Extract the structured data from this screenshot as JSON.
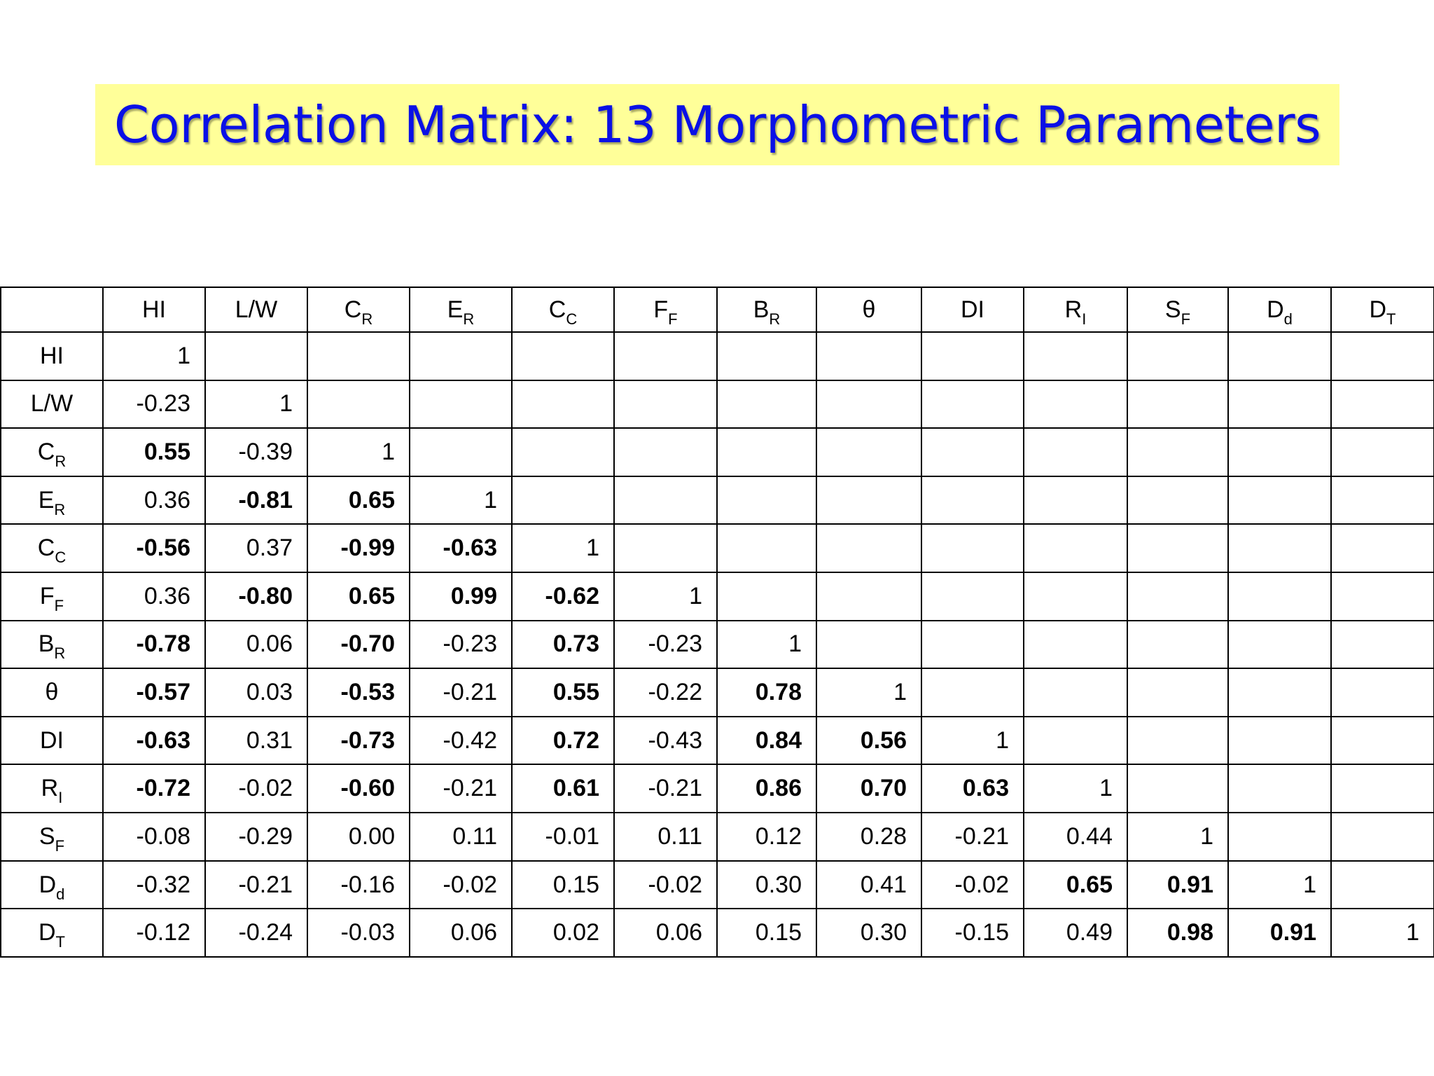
{
  "title": "Correlation Matrix: 13 Morphometric Parameters",
  "parameters": [
    {
      "base": "HI",
      "sub": ""
    },
    {
      "base": "L/W",
      "sub": ""
    },
    {
      "base": "C",
      "sub": "R"
    },
    {
      "base": "E",
      "sub": "R"
    },
    {
      "base": "C",
      "sub": "C"
    },
    {
      "base": "F",
      "sub": "F"
    },
    {
      "base": "B",
      "sub": "R"
    },
    {
      "base": "θ",
      "sub": ""
    },
    {
      "base": "DI",
      "sub": ""
    },
    {
      "base": "R",
      "sub": "I"
    },
    {
      "base": "S",
      "sub": "F"
    },
    {
      "base": "D",
      "sub": "d"
    },
    {
      "base": "D",
      "sub": "T"
    }
  ],
  "rows": [
    [
      {
        "v": "1",
        "b": false
      }
    ],
    [
      {
        "v": "-0.23",
        "b": false
      },
      {
        "v": "1",
        "b": false
      }
    ],
    [
      {
        "v": "0.55",
        "b": true
      },
      {
        "v": "-0.39",
        "b": false
      },
      {
        "v": "1",
        "b": false
      }
    ],
    [
      {
        "v": "0.36",
        "b": false
      },
      {
        "v": "-0.81",
        "b": true
      },
      {
        "v": "0.65",
        "b": true
      },
      {
        "v": "1",
        "b": false
      }
    ],
    [
      {
        "v": "-0.56",
        "b": true
      },
      {
        "v": "0.37",
        "b": false
      },
      {
        "v": "-0.99",
        "b": true
      },
      {
        "v": "-0.63",
        "b": true
      },
      {
        "v": "1",
        "b": false
      }
    ],
    [
      {
        "v": "0.36",
        "b": false
      },
      {
        "v": "-0.80",
        "b": true
      },
      {
        "v": "0.65",
        "b": true
      },
      {
        "v": "0.99",
        "b": true
      },
      {
        "v": "-0.62",
        "b": true
      },
      {
        "v": "1",
        "b": false
      }
    ],
    [
      {
        "v": "-0.78",
        "b": true
      },
      {
        "v": "0.06",
        "b": false
      },
      {
        "v": "-0.70",
        "b": true
      },
      {
        "v": "-0.23",
        "b": false
      },
      {
        "v": "0.73",
        "b": true
      },
      {
        "v": "-0.23",
        "b": false
      },
      {
        "v": "1",
        "b": false
      }
    ],
    [
      {
        "v": "-0.57",
        "b": true
      },
      {
        "v": "0.03",
        "b": false
      },
      {
        "v": "-0.53",
        "b": true
      },
      {
        "v": "-0.21",
        "b": false
      },
      {
        "v": "0.55",
        "b": true
      },
      {
        "v": "-0.22",
        "b": false
      },
      {
        "v": "0.78",
        "b": true
      },
      {
        "v": "1",
        "b": false
      }
    ],
    [
      {
        "v": "-0.63",
        "b": true
      },
      {
        "v": "0.31",
        "b": false
      },
      {
        "v": "-0.73",
        "b": true
      },
      {
        "v": "-0.42",
        "b": false
      },
      {
        "v": "0.72",
        "b": true
      },
      {
        "v": "-0.43",
        "b": false
      },
      {
        "v": "0.84",
        "b": true
      },
      {
        "v": "0.56",
        "b": true
      },
      {
        "v": "1",
        "b": false
      }
    ],
    [
      {
        "v": "-0.72",
        "b": true
      },
      {
        "v": "-0.02",
        "b": false
      },
      {
        "v": "-0.60",
        "b": true
      },
      {
        "v": "-0.21",
        "b": false
      },
      {
        "v": "0.61",
        "b": true
      },
      {
        "v": "-0.21",
        "b": false
      },
      {
        "v": "0.86",
        "b": true
      },
      {
        "v": "0.70",
        "b": true
      },
      {
        "v": "0.63",
        "b": true
      },
      {
        "v": "1",
        "b": false
      }
    ],
    [
      {
        "v": "-0.08",
        "b": false
      },
      {
        "v": "-0.29",
        "b": false
      },
      {
        "v": "0.00",
        "b": false
      },
      {
        "v": "0.11",
        "b": false
      },
      {
        "v": "-0.01",
        "b": false
      },
      {
        "v": "0.11",
        "b": false
      },
      {
        "v": "0.12",
        "b": false
      },
      {
        "v": "0.28",
        "b": false
      },
      {
        "v": "-0.21",
        "b": false
      },
      {
        "v": "0.44",
        "b": false
      },
      {
        "v": "1",
        "b": false
      }
    ],
    [
      {
        "v": "-0.32",
        "b": false
      },
      {
        "v": "-0.21",
        "b": false
      },
      {
        "v": "-0.16",
        "b": false
      },
      {
        "v": "-0.02",
        "b": false
      },
      {
        "v": "0.15",
        "b": false
      },
      {
        "v": "-0.02",
        "b": false
      },
      {
        "v": "0.30",
        "b": false
      },
      {
        "v": "0.41",
        "b": false
      },
      {
        "v": "-0.02",
        "b": false
      },
      {
        "v": "0.65",
        "b": true
      },
      {
        "v": "0.91",
        "b": true
      },
      {
        "v": "1",
        "b": false
      }
    ],
    [
      {
        "v": "-0.12",
        "b": false
      },
      {
        "v": "-0.24",
        "b": false
      },
      {
        "v": "-0.03",
        "b": false
      },
      {
        "v": "0.06",
        "b": false
      },
      {
        "v": "0.02",
        "b": false
      },
      {
        "v": "0.06",
        "b": false
      },
      {
        "v": "0.15",
        "b": false
      },
      {
        "v": "0.30",
        "b": false
      },
      {
        "v": "-0.15",
        "b": false
      },
      {
        "v": "0.49",
        "b": false
      },
      {
        "v": "0.98",
        "b": true
      },
      {
        "v": "0.91",
        "b": true
      },
      {
        "v": "1",
        "b": false
      }
    ]
  ],
  "colors": {
    "title_text": "#0a10e6",
    "title_background": "#ffff99",
    "grid_lines": "#000000"
  }
}
